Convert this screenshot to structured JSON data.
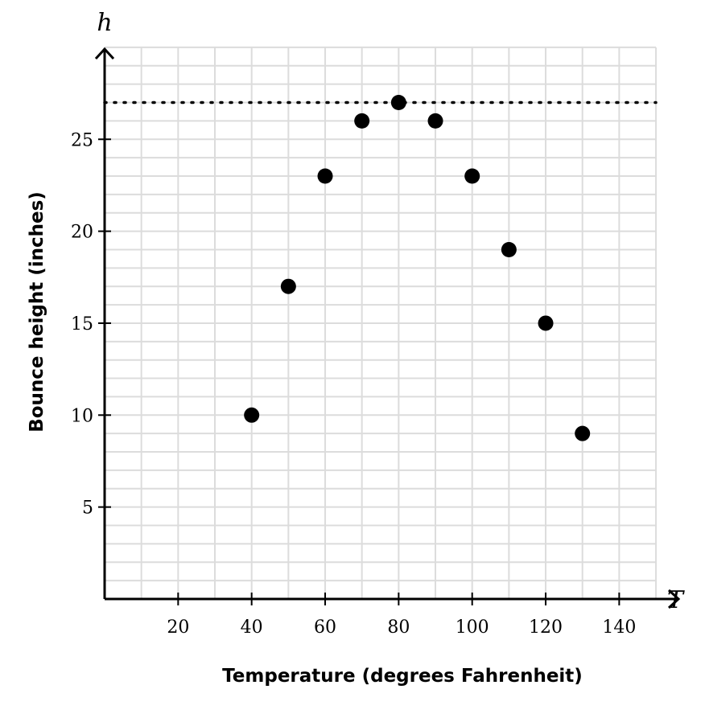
{
  "chart_data": {
    "type": "scatter",
    "xlabel": "Temperature (degrees Fahrenheit)",
    "ylabel": "Bounce height (inches)",
    "x_var": "T",
    "y_var": "h",
    "xlim": [
      0,
      150
    ],
    "ylim": [
      0,
      30
    ],
    "x_grid_step": 10,
    "y_grid_step": 1,
    "grid": true,
    "x_ticks": [
      20,
      40,
      60,
      80,
      100,
      120,
      140
    ],
    "y_ticks": [
      5,
      10,
      15,
      20,
      25
    ],
    "x_tick_labels": [
      "20",
      "40",
      "60",
      "80",
      "100",
      "120",
      "140"
    ],
    "y_tick_labels": [
      "5",
      "10",
      "15",
      "20",
      "25"
    ],
    "reference_line": {
      "y": 27,
      "style": "dotted"
    },
    "points": [
      {
        "x": 40,
        "y": 10
      },
      {
        "x": 50,
        "y": 17
      },
      {
        "x": 60,
        "y": 23
      },
      {
        "x": 70,
        "y": 26
      },
      {
        "x": 80,
        "y": 27
      },
      {
        "x": 90,
        "y": 26
      },
      {
        "x": 100,
        "y": 23
      },
      {
        "x": 110,
        "y": 19
      },
      {
        "x": 120,
        "y": 15
      },
      {
        "x": 130,
        "y": 9
      }
    ]
  }
}
